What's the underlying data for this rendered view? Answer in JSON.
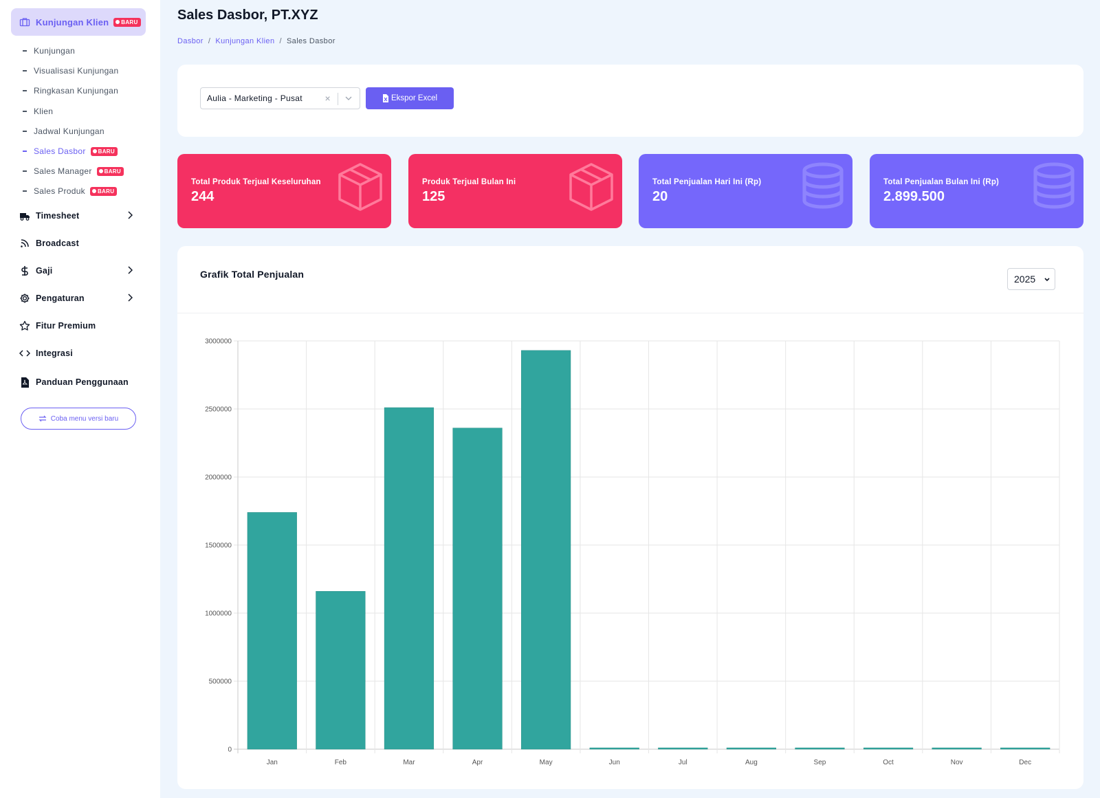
{
  "sidebar": {
    "top": {
      "label": "Kunjungan Klien",
      "badge": "BARU"
    },
    "sub_items": [
      {
        "label": "Kunjungan"
      },
      {
        "label": "Visualisasi Kunjungan"
      },
      {
        "label": "Ringkasan Kunjungan"
      },
      {
        "label": "Klien"
      },
      {
        "label": "Jadwal Kunjungan"
      },
      {
        "label": "Sales Dasbor",
        "badge": "BARU",
        "active": true
      },
      {
        "label": "Sales Manager",
        "badge": "BARU"
      },
      {
        "label": "Sales Produk",
        "badge": "BARU"
      }
    ],
    "main_items": [
      {
        "label": "Timesheet",
        "icon": "truck-icon",
        "has_chevron": true
      },
      {
        "label": "Broadcast",
        "icon": "rss-icon",
        "has_chevron": false
      },
      {
        "label": "Gaji",
        "icon": "dollar-icon",
        "has_chevron": true
      },
      {
        "label": "Pengaturan",
        "icon": "gear-icon",
        "has_chevron": true
      },
      {
        "label": "Fitur Premium",
        "icon": "star-icon",
        "has_chevron": false
      },
      {
        "label": "Integrasi",
        "icon": "code-icon",
        "has_chevron": false
      },
      {
        "label": "Panduan Penggunaan",
        "icon": "pdf-file-icon",
        "has_chevron": false
      }
    ],
    "try_button": "Coba menu versi baru"
  },
  "header": {
    "title": "Sales Dasbor, PT.XYZ",
    "breadcrumb": [
      "Dasbor",
      "Kunjungan Klien",
      "Sales Dasbor"
    ]
  },
  "filter": {
    "employee_value": "Aulia - Marketing - Pusat",
    "export_label": "Ekspor Excel"
  },
  "stats": [
    {
      "label": "Total Produk Terjual Keseluruhan",
      "value": "244",
      "color": "#f43063",
      "icon": "box-icon"
    },
    {
      "label": "Produk Terjual Bulan Ini",
      "value": "125",
      "color": "#f43063",
      "icon": "box-icon"
    },
    {
      "label": "Total Penjualan Hari Ini (Rp)",
      "value": "20",
      "color": "#7567fb",
      "icon": "database-icon"
    },
    {
      "label": "Total Penjualan Bulan Ini (Rp)",
      "value": "2.899.500",
      "color": "#7567fb",
      "icon": "database-icon"
    }
  ],
  "chart_panel": {
    "title": "Grafik Total Penjualan",
    "year": "2025"
  },
  "chart_data": {
    "type": "bar",
    "title": "Grafik Total Penjualan",
    "categories": [
      "Jan",
      "Feb",
      "Mar",
      "Apr",
      "May",
      "Jun",
      "Jul",
      "Aug",
      "Sep",
      "Oct",
      "Nov",
      "Dec"
    ],
    "values": [
      1740000,
      1160000,
      2510000,
      2360000,
      2930000,
      0,
      0,
      0,
      0,
      0,
      0,
      0
    ],
    "ylim": [
      0,
      3000000
    ],
    "yticks": [
      0,
      500000,
      1000000,
      1500000,
      2000000,
      2500000,
      3000000
    ],
    "grid": true,
    "bar_color": "#31a59e"
  }
}
